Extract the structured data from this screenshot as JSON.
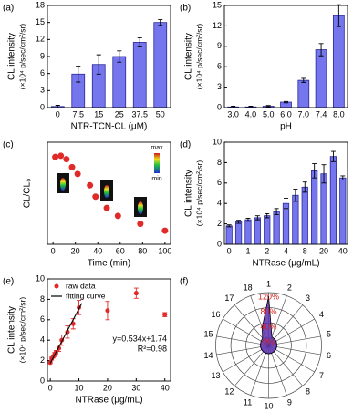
{
  "chart_data": [
    {
      "type": "bar",
      "panel_label": "(a)",
      "y_label": "CL intensity",
      "y_label_unit": "(×10⁴ p/sec/cm²/sr)",
      "x_label": "NTR-TCN-CL (μM)",
      "categories": [
        "0",
        "7.5",
        "15",
        "25",
        "37.5",
        "50"
      ],
      "values": [
        0.2,
        5.9,
        7.6,
        9.0,
        11.5,
        15.0
      ],
      "errors": [
        0.2,
        1.4,
        1.7,
        1.0,
        0.8,
        0.5
      ],
      "color": "#7575ee",
      "ylim": [
        0,
        18
      ],
      "yticks": [
        0,
        3,
        6,
        9,
        12,
        15,
        18
      ]
    },
    {
      "type": "bar",
      "panel_label": "(b)",
      "y_label": "CL intensity",
      "y_label_unit": "(×10⁴ p/sec/cm²/sr)",
      "x_label": "pH",
      "categories": [
        "3.0",
        "4.0",
        "5.0",
        "6.0",
        "7.0",
        "7.4",
        "8.0"
      ],
      "values": [
        0.1,
        0.1,
        0.2,
        0.8,
        4.0,
        8.5,
        13.5
      ],
      "errors": [
        0.1,
        0.1,
        0.1,
        0.1,
        0.3,
        0.9,
        1.6
      ],
      "color": "#7575ee",
      "ylim": [
        0,
        15
      ],
      "yticks": [
        0,
        3,
        6,
        9,
        12,
        15
      ]
    },
    {
      "type": "scatter",
      "panel_label": "(c)",
      "y_label": "CL/CL₀",
      "x_label": "Time (min)",
      "x": [
        2,
        7,
        12,
        17,
        22,
        33,
        38,
        48,
        58,
        78,
        100
      ],
      "values": [
        0.97,
        0.98,
        0.95,
        0.88,
        0.82,
        0.72,
        0.62,
        0.52,
        0.45,
        0.38,
        0.32
      ],
      "color": "#e02a2a",
      "xlim": [
        -5,
        105
      ],
      "xticks": [
        0,
        20,
        40,
        60,
        80,
        100
      ],
      "ylim": [
        0.2,
        1.1
      ],
      "annotations": [
        "max",
        "min"
      ]
    },
    {
      "type": "bar",
      "panel_label": "(d)",
      "y_label": "CL intensity",
      "y_label_unit": "(×10⁴ p/sec/cm²/sr)",
      "x_label": "NTRase (μg/mL)",
      "categories": [
        "0",
        null,
        "1",
        null,
        "2",
        null,
        "4",
        null,
        "8",
        null,
        "20",
        null,
        "40"
      ],
      "values": [
        1.8,
        2.2,
        2.4,
        2.6,
        2.8,
        3.2,
        4.0,
        4.8,
        5.6,
        7.2,
        6.9,
        8.6,
        6.5
      ],
      "errors": [
        0.1,
        0.15,
        0.15,
        0.2,
        0.2,
        0.3,
        0.5,
        0.6,
        0.5,
        0.7,
        0.9,
        0.5,
        0.2
      ],
      "color": "#7575ee",
      "ylim": [
        0,
        10
      ],
      "yticks": [
        0,
        2,
        4,
        6,
        8,
        10
      ]
    },
    {
      "type": "scatter",
      "panel_label": "(e)",
      "y_label": "CL intensity",
      "y_label_unit": "(×10⁴ p/sec/cm²/sr)",
      "x_label": "NTRase (μg/mL)",
      "series": [
        {
          "name": "raw data",
          "color": "#e02a2a",
          "x": [
            0,
            0.5,
            1,
            1.5,
            2,
            3,
            4,
            6,
            8,
            10,
            20,
            30,
            40
          ],
          "values": [
            1.8,
            2.2,
            2.4,
            2.6,
            2.8,
            3.2,
            4.0,
            4.8,
            5.6,
            7.2,
            6.9,
            8.6,
            6.5
          ],
          "errors": [
            0.1,
            0.15,
            0.15,
            0.2,
            0.2,
            0.3,
            0.5,
            0.6,
            0.5,
            0.7,
            0.9,
            0.5,
            0.2
          ]
        },
        {
          "name": "fitting curve",
          "color": "#000000",
          "type": "line",
          "x": [
            0,
            11
          ],
          "values": [
            1.74,
            7.61
          ]
        }
      ],
      "xlim": [
        -1,
        42
      ],
      "xticks": [
        0,
        10,
        20,
        30,
        40
      ],
      "ylim": [
        0,
        10
      ],
      "yticks": [
        0,
        2,
        4,
        6,
        8,
        10
      ],
      "annotations": [
        "y=0.534x+1.74",
        "R²=0.98"
      ]
    },
    {
      "type": "radar",
      "panel_label": "(f)",
      "categories": [
        "1",
        "2",
        "3",
        "4",
        "5",
        "6",
        "7",
        "8",
        "9",
        "10",
        "11",
        "12",
        "13",
        "14",
        "15",
        "16",
        "17",
        "18"
      ],
      "values": [
        110,
        5,
        3,
        3,
        2,
        2,
        2,
        2,
        2,
        2,
        2,
        2,
        2,
        2,
        2,
        3,
        5,
        30
      ],
      "color": "#5b2fb0",
      "rlim": [
        -20,
        120
      ],
      "rticks": [
        {
          "value": 0,
          "label": "0%"
        },
        {
          "value": 40,
          "label": "40%"
        },
        {
          "value": 80,
          "label": "80%"
        },
        {
          "value": 120,
          "label": "120%"
        }
      ],
      "rtick_color": "#d42020"
    }
  ]
}
